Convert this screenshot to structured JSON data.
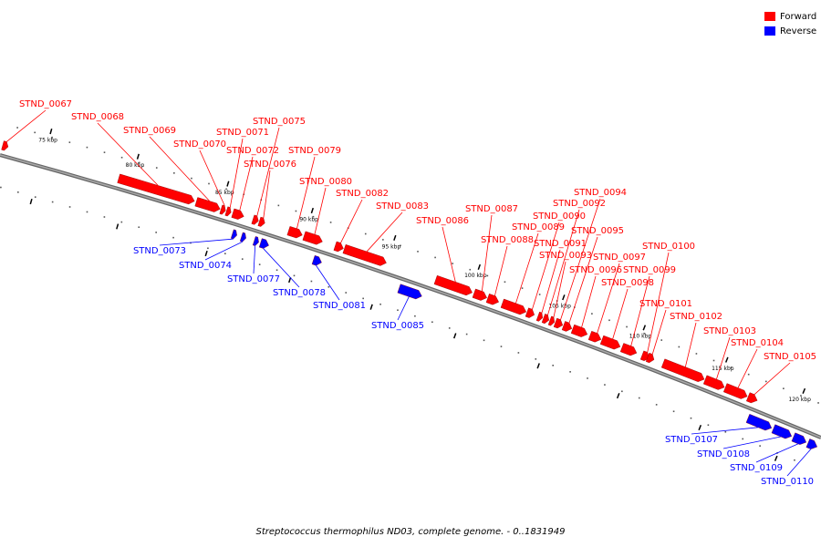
{
  "title": "Streptococcus thermophilus ND03, complete genome. - 0..1831949",
  "legend": [
    {
      "label": "Forward",
      "color": "#ff0000"
    },
    {
      "label": "Reverse",
      "color": "#0000ff"
    }
  ],
  "colors": {
    "forward": "#ff0000",
    "reverse": "#0000ff",
    "backbone": "#777777"
  },
  "ticks": [
    {
      "label": "75 kbp"
    },
    {
      "label": "80 kbp"
    },
    {
      "label": "85 kbp"
    },
    {
      "label": "90 kbp"
    },
    {
      "label": "95 kbp"
    },
    {
      "label": "100 kbp"
    },
    {
      "label": "105 kbp"
    },
    {
      "label": "110 kbp"
    },
    {
      "label": "115 kbp"
    },
    {
      "label": "120 kbp"
    }
  ],
  "genes": [
    {
      "label": "STND_0067",
      "strand": "forward"
    },
    {
      "label": "STND_0068",
      "strand": "forward"
    },
    {
      "label": "STND_0069",
      "strand": "forward"
    },
    {
      "label": "STND_0070",
      "strand": "forward"
    },
    {
      "label": "STND_0071",
      "strand": "forward"
    },
    {
      "label": "STND_0072",
      "strand": "forward"
    },
    {
      "label": "STND_0073",
      "strand": "reverse"
    },
    {
      "label": "STND_0074",
      "strand": "reverse"
    },
    {
      "label": "STND_0075",
      "strand": "forward"
    },
    {
      "label": "STND_0076",
      "strand": "forward"
    },
    {
      "label": "STND_0077",
      "strand": "reverse"
    },
    {
      "label": "STND_0078",
      "strand": "reverse"
    },
    {
      "label": "STND_0079",
      "strand": "forward"
    },
    {
      "label": "STND_0080",
      "strand": "forward"
    },
    {
      "label": "STND_0081",
      "strand": "reverse"
    },
    {
      "label": "STND_0082",
      "strand": "forward"
    },
    {
      "label": "STND_0083",
      "strand": "forward"
    },
    {
      "label": "STND_0085",
      "strand": "reverse"
    },
    {
      "label": "STND_0086",
      "strand": "forward"
    },
    {
      "label": "STND_0087",
      "strand": "forward"
    },
    {
      "label": "STND_0088",
      "strand": "forward"
    },
    {
      "label": "STND_0089",
      "strand": "forward"
    },
    {
      "label": "STND_0090",
      "strand": "forward"
    },
    {
      "label": "STND_0091",
      "strand": "forward"
    },
    {
      "label": "STND_0092",
      "strand": "forward"
    },
    {
      "label": "STND_0093",
      "strand": "forward"
    },
    {
      "label": "STND_0094",
      "strand": "forward"
    },
    {
      "label": "STND_0095",
      "strand": "forward"
    },
    {
      "label": "STND_0096",
      "strand": "forward"
    },
    {
      "label": "STND_0097",
      "strand": "forward"
    },
    {
      "label": "STND_0098",
      "strand": "forward"
    },
    {
      "label": "STND_0099",
      "strand": "forward"
    },
    {
      "label": "STND_0100",
      "strand": "forward"
    },
    {
      "label": "STND_0101",
      "strand": "forward"
    },
    {
      "label": "STND_0102",
      "strand": "forward"
    },
    {
      "label": "STND_0103",
      "strand": "forward"
    },
    {
      "label": "STND_0104",
      "strand": "forward"
    },
    {
      "label": "STND_0105",
      "strand": "forward"
    },
    {
      "label": "STND_0107",
      "strand": "reverse"
    },
    {
      "label": "STND_0108",
      "strand": "reverse"
    },
    {
      "label": "STND_0109",
      "strand": "reverse"
    },
    {
      "label": "STND_0110",
      "strand": "reverse"
    }
  ]
}
